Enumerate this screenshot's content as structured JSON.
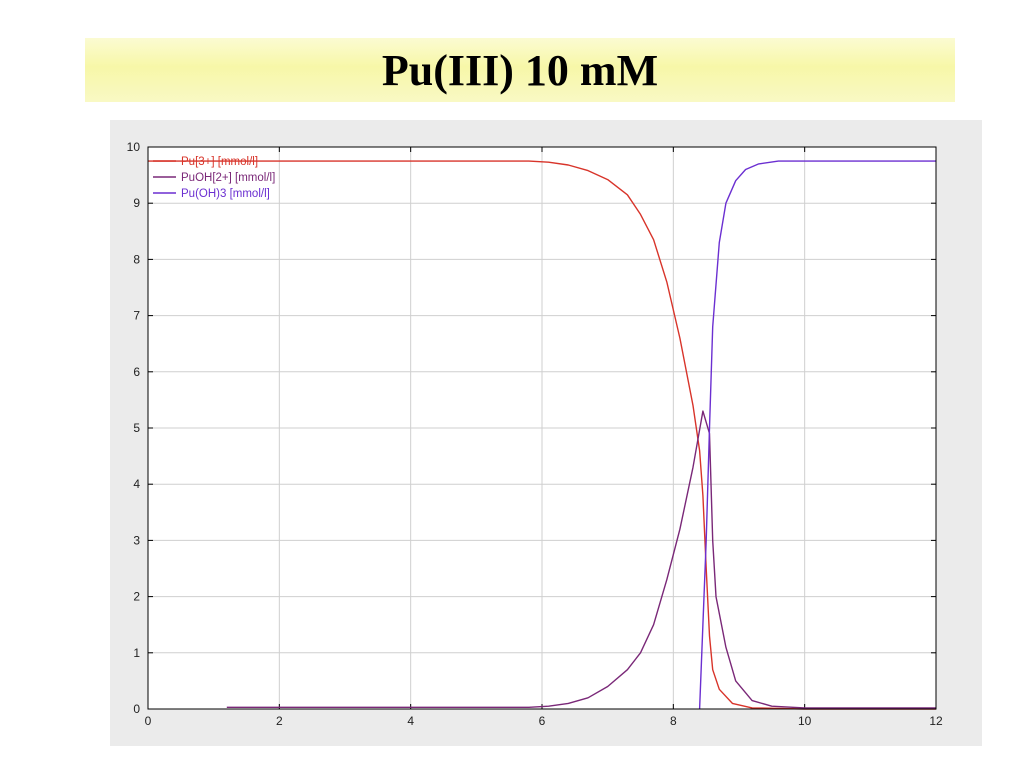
{
  "slide": {
    "title": "Pu(III) 10 mM"
  },
  "chart_data": {
    "type": "line",
    "title": "Pu(III) 10 mM",
    "xlabel": "",
    "ylabel": "",
    "xlim": [
      0,
      12
    ],
    "ylim": [
      0,
      10
    ],
    "xticks": [
      0,
      2,
      4,
      6,
      8,
      10,
      12
    ],
    "yticks": [
      0,
      1,
      2,
      3,
      4,
      5,
      6,
      7,
      8,
      9,
      10
    ],
    "grid": true,
    "legend_position": "top-left",
    "colors": {
      "pu3": "#d8342a",
      "puoh2": "#7a2878",
      "puoh3": "#6b2fd1",
      "grid": "#cfcfcf",
      "plot_bg": "#ffffff",
      "panel_bg": "#ebebeb"
    },
    "series": [
      {
        "name": "Pu[3+] [mmol/l]",
        "color": "#d8342a",
        "points": [
          [
            0,
            9.75
          ],
          [
            1,
            9.75
          ],
          [
            2,
            9.75
          ],
          [
            3,
            9.75
          ],
          [
            4,
            9.75
          ],
          [
            5,
            9.75
          ],
          [
            5.8,
            9.75
          ],
          [
            6.1,
            9.73
          ],
          [
            6.4,
            9.68
          ],
          [
            6.7,
            9.58
          ],
          [
            7.0,
            9.42
          ],
          [
            7.3,
            9.15
          ],
          [
            7.5,
            8.8
          ],
          [
            7.7,
            8.35
          ],
          [
            7.9,
            7.6
          ],
          [
            8.1,
            6.6
          ],
          [
            8.3,
            5.4
          ],
          [
            8.4,
            4.6
          ],
          [
            8.45,
            3.8
          ],
          [
            8.5,
            2.5
          ],
          [
            8.55,
            1.3
          ],
          [
            8.6,
            0.7
          ],
          [
            8.7,
            0.35
          ],
          [
            8.9,
            0.1
          ],
          [
            9.2,
            0.02
          ],
          [
            10,
            0.0
          ],
          [
            12,
            0.0
          ]
        ]
      },
      {
        "name": "PuOH[2+] [mmol/l]",
        "color": "#7a2878",
        "points": [
          [
            1.2,
            0.03
          ],
          [
            2,
            0.03
          ],
          [
            3,
            0.03
          ],
          [
            4,
            0.03
          ],
          [
            5,
            0.03
          ],
          [
            5.8,
            0.03
          ],
          [
            6.1,
            0.05
          ],
          [
            6.4,
            0.1
          ],
          [
            6.7,
            0.2
          ],
          [
            7.0,
            0.4
          ],
          [
            7.3,
            0.7
          ],
          [
            7.5,
            1.0
          ],
          [
            7.7,
            1.5
          ],
          [
            7.9,
            2.3
          ],
          [
            8.1,
            3.2
          ],
          [
            8.3,
            4.3
          ],
          [
            8.45,
            5.3
          ],
          [
            8.55,
            4.9
          ],
          [
            8.6,
            3.0
          ],
          [
            8.65,
            2.0
          ],
          [
            8.8,
            1.1
          ],
          [
            8.95,
            0.5
          ],
          [
            9.2,
            0.15
          ],
          [
            9.5,
            0.05
          ],
          [
            10,
            0.02
          ],
          [
            12,
            0.02
          ]
        ]
      },
      {
        "name": "Pu(OH)3 [mmol/l]",
        "color": "#6b2fd1",
        "points": [
          [
            8.4,
            0.0
          ],
          [
            8.45,
            1.5
          ],
          [
            8.5,
            3.0
          ],
          [
            8.55,
            5.0
          ],
          [
            8.6,
            6.8
          ],
          [
            8.7,
            8.3
          ],
          [
            8.8,
            9.0
          ],
          [
            8.95,
            9.4
          ],
          [
            9.1,
            9.6
          ],
          [
            9.3,
            9.7
          ],
          [
            9.6,
            9.75
          ],
          [
            10,
            9.75
          ],
          [
            11,
            9.75
          ],
          [
            12,
            9.75
          ]
        ]
      }
    ]
  }
}
